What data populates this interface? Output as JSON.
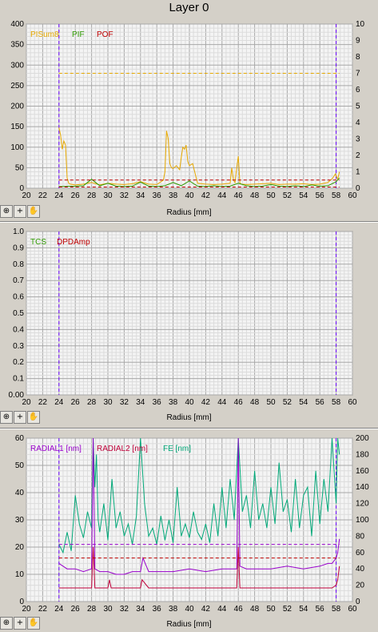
{
  "window": {
    "title": "Layer 0"
  },
  "toolbar": {
    "icons": [
      "zoom-icon",
      "crosshair-icon",
      "hand-icon"
    ],
    "glyphs": [
      "⊕",
      "+",
      "✋"
    ]
  },
  "chart_data": [
    {
      "type": "line",
      "xlabel": "Radius [mm]",
      "xlim": [
        20,
        60
      ],
      "xticks": [
        "20",
        "22",
        "24",
        "26",
        "28",
        "30",
        "32",
        "34",
        "36",
        "38",
        "40",
        "42",
        "44",
        "46",
        "48",
        "50",
        "52",
        "54",
        "56",
        "58",
        "60"
      ],
      "ylim": [
        0,
        400
      ],
      "yticks": [
        "0",
        "50",
        "100",
        "150",
        "200",
        "250",
        "300",
        "350",
        "400"
      ],
      "y2lim": [
        0,
        10
      ],
      "y2ticks": [
        "0",
        "1",
        "2",
        "3",
        "4",
        "5",
        "6",
        "7",
        "8",
        "9",
        "10"
      ],
      "markers": [
        24,
        58
      ],
      "legend": [
        "PISum8",
        "PIF",
        "POF"
      ],
      "series": [
        {
          "name": "PISum8",
          "axis": "left",
          "color": "#e6a800",
          "x": [
            24,
            24.2,
            24.4,
            24.6,
            24.8,
            25,
            25.2,
            25.4,
            26,
            27,
            28,
            29,
            30,
            31,
            32,
            33,
            34,
            35,
            36,
            36.8,
            37,
            37.2,
            37.4,
            37.6,
            37.8,
            38,
            38.4,
            38.8,
            39,
            39.2,
            39.4,
            39.6,
            39.8,
            40,
            40.4,
            41,
            42,
            43,
            44,
            45,
            45.2,
            45.4,
            45.6,
            45.8,
            46,
            46.2,
            46.4,
            47,
            48,
            49,
            50,
            51,
            52,
            53,
            54,
            55,
            56,
            57,
            57.6,
            57.9,
            58,
            58.2,
            58.4
          ],
          "y": [
            148,
            130,
            95,
            115,
            105,
            25,
            12,
            10,
            8,
            10,
            14,
            8,
            12,
            10,
            9,
            11,
            16,
            10,
            9,
            20,
            40,
            140,
            120,
            60,
            50,
            48,
            55,
            45,
            75,
            100,
            95,
            105,
            65,
            55,
            60,
            12,
            10,
            9,
            10,
            12,
            50,
            20,
            14,
            50,
            78,
            12,
            10,
            9,
            10,
            11,
            12,
            9,
            10,
            10,
            11,
            9,
            10,
            14,
            25,
            35,
            30,
            22,
            40
          ]
        },
        {
          "name": "PIF",
          "axis": "left",
          "color": "#2e9a00",
          "x": [
            24,
            26,
            27,
            28,
            29,
            30,
            31,
            32,
            33,
            34,
            35,
            36,
            37,
            38,
            39,
            40,
            41,
            42,
            43,
            44,
            45,
            46,
            47,
            48,
            49,
            50,
            51,
            52,
            53,
            54,
            55,
            56,
            57,
            58,
            58.4
          ],
          "y": [
            4,
            5,
            6,
            22,
            6,
            12,
            5,
            4,
            5,
            15,
            5,
            4,
            6,
            14,
            6,
            18,
            5,
            4,
            6,
            4,
            5,
            12,
            6,
            4,
            5,
            9,
            5,
            4,
            6,
            4,
            8,
            5,
            6,
            16,
            25
          ]
        },
        {
          "name": "POF",
          "axis": "left",
          "color": "#c00000",
          "x": [
            24,
            58.4
          ],
          "y": [
            3,
            3
          ]
        },
        {
          "name": "",
          "axis": "right",
          "color": "#e6a800",
          "x": [
            24,
            58.4
          ],
          "y": [
            7,
            7
          ]
        },
        {
          "name": "",
          "axis": "right",
          "color": "#c00000",
          "x": [
            24,
            58.4
          ],
          "y": [
            0.5,
            0.5
          ]
        }
      ]
    },
    {
      "type": "line",
      "xlabel": "Radius [mm]",
      "xlim": [
        20,
        60
      ],
      "xticks": [
        "20",
        "22",
        "24",
        "26",
        "28",
        "30",
        "32",
        "34",
        "36",
        "38",
        "40",
        "42",
        "44",
        "46",
        "48",
        "50",
        "52",
        "54",
        "56",
        "58",
        "60"
      ],
      "ylim": [
        0,
        1
      ],
      "yticks": [
        "0.00",
        "0.1",
        "0.2",
        "0.3",
        "0.4",
        "0.5",
        "0.6",
        "0.7",
        "0.8",
        "0.9",
        "1.0"
      ],
      "markers": [
        24,
        58
      ],
      "legend": [
        "TCS",
        "DPDAmp"
      ],
      "series": []
    },
    {
      "type": "line",
      "xlabel": "Radius [mm]",
      "xlim": [
        20,
        60
      ],
      "xticks": [
        "20",
        "22",
        "24",
        "26",
        "28",
        "30",
        "32",
        "34",
        "36",
        "38",
        "40",
        "42",
        "44",
        "46",
        "48",
        "50",
        "52",
        "54",
        "56",
        "58",
        "60"
      ],
      "ylim": [
        0,
        60
      ],
      "yticks": [
        "0",
        "10",
        "20",
        "30",
        "40",
        "50",
        "60"
      ],
      "y2lim": [
        0,
        200
      ],
      "y2ticks": [
        "0",
        "20",
        "40",
        "60",
        "80",
        "100",
        "120",
        "140",
        "160",
        "180",
        "200"
      ],
      "markers": [
        24,
        58
      ],
      "legend": [
        "RADIAL1 [nm]",
        "RADIAL2 [nm]",
        "FE [nm]"
      ],
      "series": [
        {
          "name": "FE [nm]",
          "axis": "right",
          "color": "#00a878",
          "x": [
            24,
            24.5,
            25,
            25.5,
            26,
            26.5,
            27,
            27.5,
            28,
            28.2,
            28.4,
            28.6,
            28.8,
            29,
            29.5,
            30,
            30.5,
            31,
            31.5,
            32,
            32.5,
            33,
            33.5,
            34,
            34.5,
            35,
            35.5,
            36,
            36.5,
            37,
            37.5,
            38,
            38.5,
            39,
            39.5,
            40,
            40.5,
            41,
            41.5,
            42,
            42.5,
            43,
            43.5,
            44,
            44.5,
            45,
            45.5,
            46,
            46.5,
            47,
            47.5,
            48,
            48.5,
            49,
            49.5,
            50,
            50.5,
            51,
            51.5,
            52,
            52.5,
            53,
            53.5,
            54,
            54.5,
            55,
            55.5,
            56,
            56.5,
            57,
            57.5,
            58,
            58.2,
            58.4
          ],
          "y": [
            70,
            60,
            85,
            62,
            130,
            95,
            78,
            110,
            90,
            200,
            140,
            180,
            100,
            85,
            120,
            75,
            150,
            90,
            110,
            80,
            95,
            70,
            105,
            200,
            120,
            80,
            90,
            70,
            105,
            75,
            100,
            72,
            140,
            80,
            95,
            78,
            110,
            85,
            76,
            95,
            72,
            120,
            80,
            140,
            90,
            150,
            100,
            200,
            110,
            130,
            90,
            160,
            100,
            120,
            90,
            140,
            95,
            170,
            110,
            125,
            85,
            150,
            90,
            130,
            140,
            80,
            160,
            95,
            150,
            110,
            200,
            120,
            200,
            180
          ]
        },
        {
          "name": "RADIAL1 [nm]",
          "axis": "left",
          "color": "#9900cc",
          "x": [
            24,
            25,
            26,
            27,
            28,
            28.2,
            28.4,
            29,
            30,
            31,
            32,
            33,
            34,
            34.3,
            35,
            36,
            38,
            40,
            42,
            44,
            45.8,
            46,
            46.2,
            47,
            48,
            50,
            52,
            54,
            56,
            57,
            57.5,
            58,
            58.2,
            58.4
          ],
          "y": [
            14,
            12,
            12,
            11,
            12,
            60,
            12,
            11,
            11,
            10,
            10,
            11,
            11,
            16,
            11,
            11,
            11,
            12,
            11,
            12,
            12,
            60,
            13,
            12,
            12,
            12,
            13,
            12,
            13,
            14,
            14,
            16,
            18,
            23
          ]
        },
        {
          "name": "RADIAL2 [nm]",
          "axis": "left",
          "color": "#c0003a",
          "x": [
            24,
            25,
            26,
            27,
            28,
            28.2,
            28.4,
            29,
            30,
            30.2,
            30.4,
            31,
            32,
            33,
            34,
            34.2,
            35,
            36,
            38,
            40,
            42,
            44,
            45.8,
            46,
            46.2,
            47,
            48,
            50,
            52,
            54,
            56,
            57,
            57.5,
            58,
            58.2,
            58.4
          ],
          "y": [
            5,
            5,
            5,
            5,
            5,
            20,
            5,
            5,
            5,
            8,
            5,
            5,
            5,
            5,
            5,
            8,
            5,
            5,
            5,
            5,
            5,
            5,
            5,
            20,
            5,
            5,
            5,
            5,
            5,
            5,
            5,
            5,
            5,
            6,
            8,
            13
          ]
        },
        {
          "name": "",
          "axis": "left",
          "color": "#9900cc",
          "x": [
            24,
            58.4
          ],
          "y": [
            21,
            21
          ]
        },
        {
          "name": "",
          "axis": "left",
          "color": "#c00000",
          "x": [
            24,
            58.4
          ],
          "y": [
            16,
            16
          ]
        }
      ]
    }
  ]
}
